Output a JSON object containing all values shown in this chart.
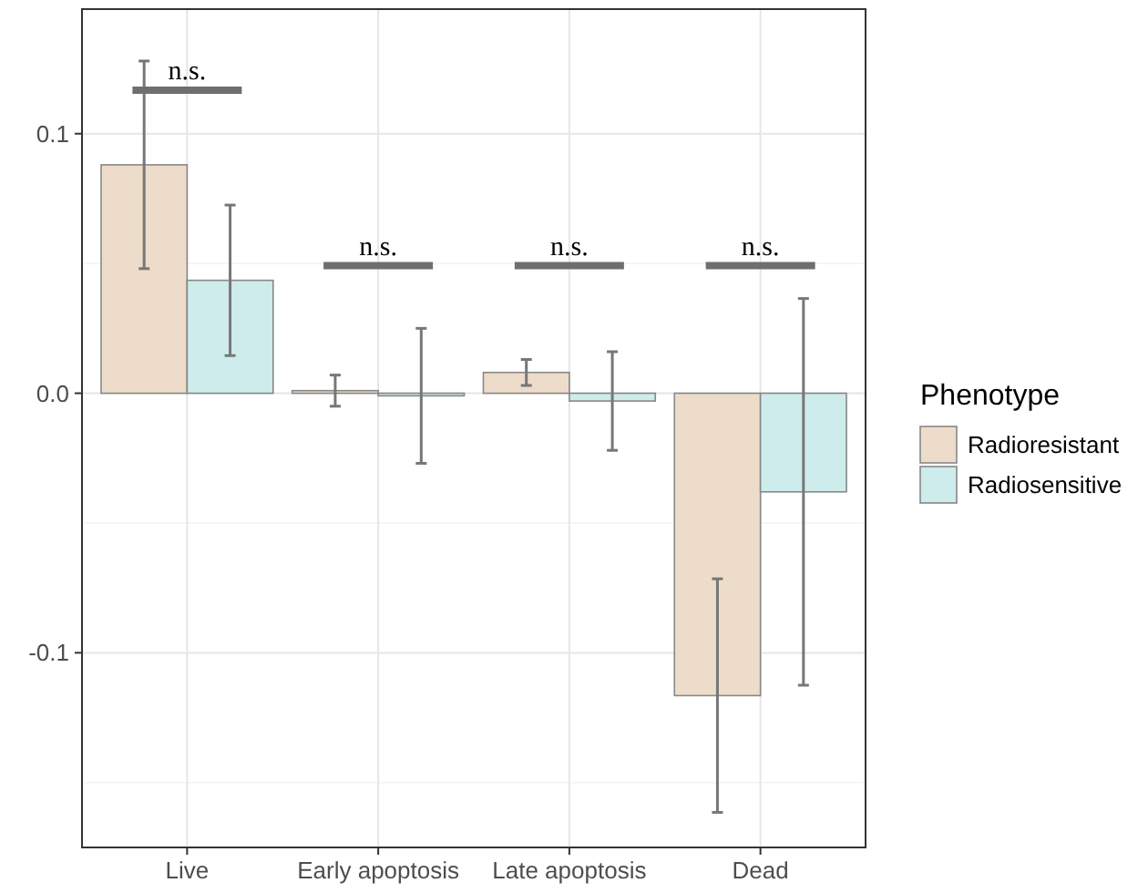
{
  "chart_data": {
    "type": "bar",
    "categories": [
      "Live",
      "Early apoptosis",
      "Late apoptosis",
      "Dead"
    ],
    "series": [
      {
        "name": "Radioresistant",
        "color": "#eedccb",
        "values": [
          0.088,
          0.001,
          0.008,
          -0.1165
        ],
        "errors": [
          0.04,
          0.006,
          0.005,
          0.045
        ]
      },
      {
        "name": "Radiosensitive",
        "color": "#cdeceb",
        "values": [
          0.0435,
          -0.001,
          -0.003,
          -0.038
        ],
        "errors": [
          0.029,
          0.026,
          0.019,
          0.0745
        ]
      }
    ],
    "ylim": [
      -0.175,
      0.148
    ],
    "yticks": [
      {
        "value": -0.1,
        "label": "-0.1"
      },
      {
        "value": 0,
        "label": "0.0"
      },
      {
        "value": 0.1,
        "label": "0.1"
      }
    ],
    "grid": true,
    "legend": "right",
    "legend_title": "Phenotype",
    "annotations": [
      "n.s.",
      "n.s.",
      "n.s.",
      "n.s."
    ]
  }
}
